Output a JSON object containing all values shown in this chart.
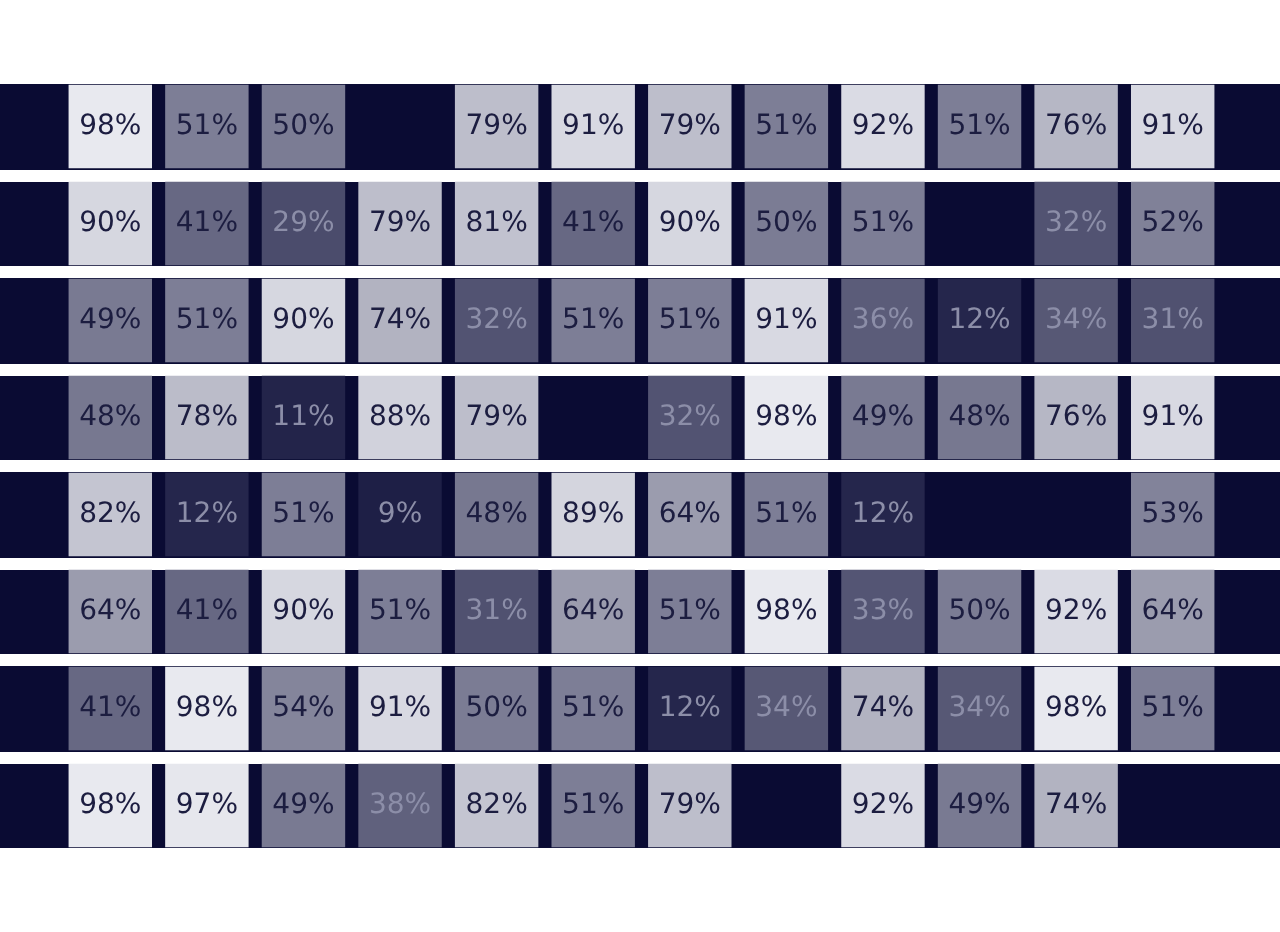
{
  "chart_data": {
    "type": "heatmap",
    "tick_labels": false,
    "categories": [
      null,
      null,
      null,
      null,
      null,
      null,
      null,
      null,
      null,
      null,
      null,
      null
    ],
    "y_categories": [
      null,
      null,
      null,
      null,
      null,
      null,
      null,
      null
    ],
    "cells": [
      [
        98,
        51,
        50,
        null,
        79,
        91,
        79,
        51,
        92,
        51,
        76,
        91
      ],
      [
        90,
        41,
        29,
        79,
        81,
        41,
        90,
        50,
        51,
        null,
        32,
        52
      ],
      [
        49,
        51,
        90,
        74,
        32,
        51,
        51,
        91,
        36,
        12,
        34,
        31
      ],
      [
        48,
        78,
        11,
        88,
        79,
        null,
        32,
        98,
        49,
        48,
        76,
        91
      ],
      [
        82,
        12,
        51,
        9,
        48,
        89,
        64,
        51,
        12,
        null,
        null,
        53
      ],
      [
        64,
        41,
        90,
        51,
        31,
        64,
        51,
        98,
        33,
        50,
        92,
        64
      ],
      [
        41,
        98,
        54,
        91,
        50,
        51,
        12,
        34,
        74,
        34,
        98,
        51
      ],
      [
        98,
        97,
        49,
        38,
        82,
        51,
        79,
        null,
        92,
        49,
        74,
        null
      ]
    ],
    "cell_labels": [
      [
        "98%",
        "51%",
        "50%",
        null,
        "79%",
        "91%",
        "79%",
        "51%",
        "92%",
        "51%",
        "76%",
        "91%"
      ],
      [
        "90%",
        "41%",
        "29%",
        "79%",
        "81%",
        "41%",
        "90%",
        "50%",
        "51%",
        null,
        "32%",
        "52%"
      ],
      [
        "49%",
        "51%",
        "90%",
        "74%",
        "32%",
        "51%",
        "51%",
        "91%",
        "36%",
        "12%",
        "34%",
        "31%"
      ],
      [
        "48%",
        "78%",
        "11%",
        "88%",
        "79%",
        null,
        "32%",
        "98%",
        "49%",
        "48%",
        "76%",
        "91%"
      ],
      [
        "82%",
        "12%",
        "51%",
        "9%",
        "48%",
        "89%",
        "64%",
        "51%",
        "12%",
        null,
        null,
        "53%"
      ],
      [
        "64%",
        "41%",
        "90%",
        "51%",
        "31%",
        "64%",
        "51%",
        "98%",
        "33%",
        "50%",
        "92%",
        "64%"
      ],
      [
        "41%",
        "98%",
        "54%",
        "91%",
        "50%",
        "51%",
        "12%",
        "34%",
        "74%",
        "34%",
        "98%",
        "51%"
      ],
      [
        "98%",
        "97%",
        "49%",
        "38%",
        "82%",
        "51%",
        "79%",
        null,
        "92%",
        "49%",
        "74%",
        null
      ]
    ]
  }
}
